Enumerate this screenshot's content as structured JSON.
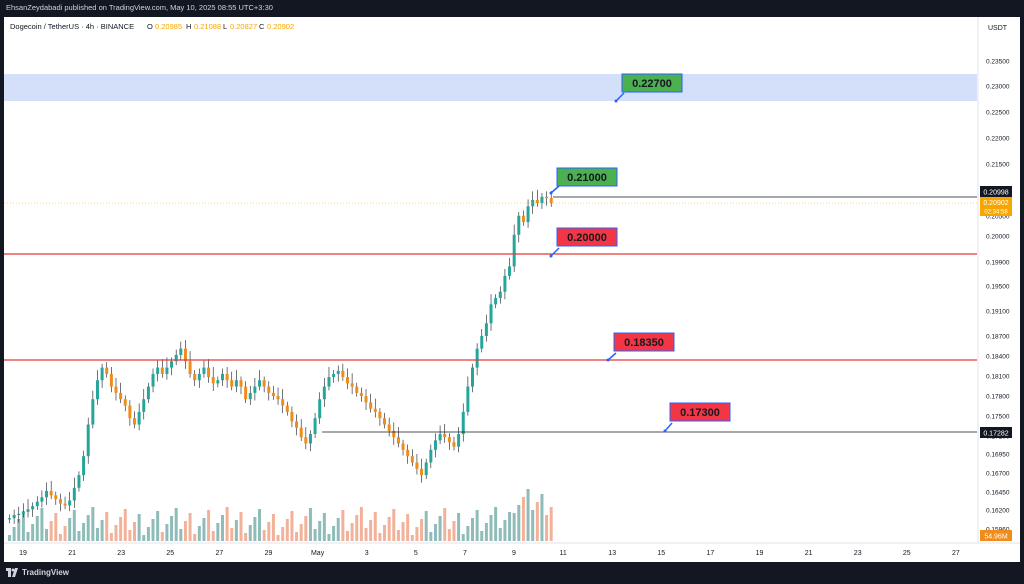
{
  "header": {
    "publish_line": "EhsanZeydabadi published on TradingView.com, May 10, 2025 08:55 UTC+3:30"
  },
  "footer": {
    "brand": "TradingView"
  },
  "chart_data": {
    "type": "candlestick",
    "symbol_line": "Dogecoin / TetherUS · 4h · BINANCE",
    "ohlc": [
      {
        "label": "O",
        "value": "0.20985"
      },
      {
        "label": "H",
        "value": "0.21088"
      },
      {
        "label": "L",
        "value": "0.20827"
      },
      {
        "label": "C",
        "value": "0.20902"
      }
    ],
    "currency": "USDT",
    "y_ticks": [
      "0.23500",
      "0.23000",
      "0.22500",
      "0.22000",
      "0.21500",
      "0.21000",
      "0.20500",
      "0.20000",
      "0.19900",
      "0.19500",
      "0.19100",
      "0.18700",
      "0.18400",
      "0.18100",
      "0.17800",
      "0.17500",
      "0.17200",
      "0.16950",
      "0.16700",
      "0.16450",
      "0.16200",
      "0.15960"
    ],
    "x_ticks": [
      "19",
      "21",
      "23",
      "25",
      "27",
      "29",
      "May",
      "3",
      "5",
      "7",
      "9",
      "11",
      "13",
      "15",
      "17",
      "19",
      "21",
      "23",
      "25",
      "27"
    ],
    "levels": [
      {
        "value": "0.22700",
        "kind": "zone",
        "label_color": "#43a047"
      },
      {
        "value": "0.21000",
        "kind": "target",
        "label_color": "#43a047"
      },
      {
        "value": "0.20000",
        "kind": "support",
        "label_color": "#f23645"
      },
      {
        "value": "0.18350",
        "kind": "support",
        "label_color": "#f23645"
      },
      {
        "value": "0.17300",
        "kind": "support",
        "label_color": "#2962ff"
      }
    ],
    "price_tags": [
      {
        "value": "0.20998",
        "kind": "line-high"
      },
      {
        "value": "0.20902",
        "kind": "last-price"
      },
      {
        "value": "02:34:58",
        "kind": "countdown"
      },
      {
        "value": "0.17282",
        "kind": "line-low"
      },
      {
        "value": "54.96M",
        "kind": "volume"
      }
    ],
    "colors": {
      "up": "#26a69a",
      "down": "#ef8c1a",
      "zone": "#d4e0fa",
      "vol_up": "#8fbcb9",
      "vol_down": "#f2b29a"
    }
  }
}
